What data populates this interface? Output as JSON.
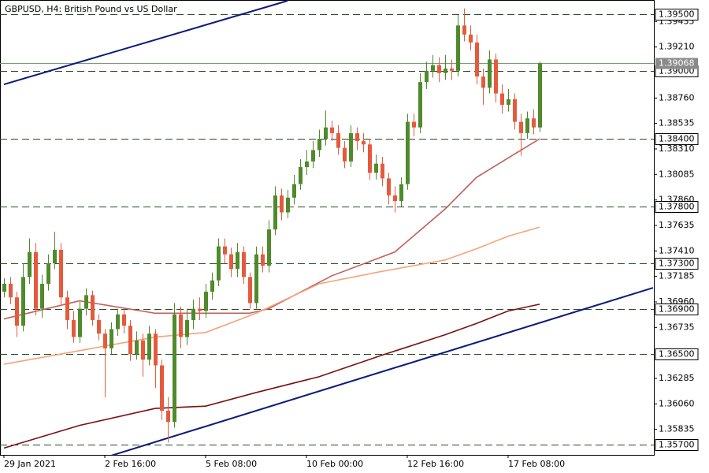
{
  "chart_data": {
    "type": "candlestick",
    "title": "GBPUSD, H4:  British Pound vs US Dollar",
    "categories": [
      "29 Jan 2021",
      null,
      null,
      null,
      null,
      null,
      null,
      null,
      null,
      null,
      null,
      null,
      null,
      null,
      null,
      null,
      "2 Feb 16:00",
      null,
      null,
      null,
      null,
      null,
      null,
      null,
      null,
      null,
      null,
      null,
      null,
      null,
      null,
      null,
      "5 Feb 08:00",
      null,
      null,
      null,
      null,
      null,
      null,
      null,
      null,
      null,
      null,
      null,
      null,
      null,
      null,
      null,
      "10 Feb 00:00",
      null,
      null,
      null,
      null,
      null,
      null,
      null,
      null,
      null,
      null,
      null,
      null,
      null,
      null,
      null,
      "12 Feb 16:00",
      null,
      null,
      null,
      null,
      null,
      null,
      null,
      null,
      null,
      null,
      null,
      null,
      null,
      null,
      null,
      "17 Feb 08:00",
      null,
      null,
      null,
      null,
      null
    ],
    "open": [
      1.3705,
      1.3712,
      1.37,
      1.3675,
      1.3718,
      1.374,
      1.369,
      1.3712,
      1.373,
      1.3742,
      1.37,
      1.368,
      1.3665,
      1.369,
      1.3702,
      1.368,
      1.3668,
      1.3655,
      1.3672,
      1.3685,
      1.3675,
      1.365,
      1.3662,
      1.3645,
      1.3668,
      1.364,
      1.36,
      1.359,
      1.3685,
      1.3665,
      1.368,
      1.369,
      1.3688,
      1.3705,
      1.3715,
      1.3745,
      1.3738,
      1.3725,
      1.374,
      1.3718,
      1.3695,
      1.3738,
      1.3728,
      1.376,
      1.379,
      1.3775,
      1.3788,
      1.38,
      1.3815,
      1.382,
      1.383,
      1.384,
      1.385,
      1.3845,
      1.3832,
      1.382,
      1.3845,
      1.3838,
      1.3835,
      1.381,
      1.3818,
      1.3805,
      1.379,
      1.3785,
      1.38,
      1.3855,
      1.385,
      1.389,
      1.39,
      1.3905,
      1.3898,
      1.3902,
      1.39,
      1.394,
      1.3932,
      1.3925,
      1.3895,
      1.3885,
      1.391,
      1.388,
      1.387,
      1.3875,
      1.3855,
      1.3845,
      1.3858,
      1.385
    ],
    "high": [
      1.3717,
      1.3718,
      1.3705,
      1.373,
      1.3752,
      1.3748,
      1.372,
      1.3738,
      1.3758,
      1.3748,
      1.3706,
      1.3688,
      1.3696,
      1.3708,
      1.3706,
      1.3685,
      1.3672,
      1.3678,
      1.369,
      1.369,
      1.368,
      1.367,
      1.3668,
      1.3675,
      1.3672,
      1.3645,
      1.3612,
      1.3695,
      1.3692,
      1.369,
      1.3698,
      1.37,
      1.3712,
      1.3722,
      1.3752,
      1.3752,
      1.3744,
      1.3748,
      1.3745,
      1.3722,
      1.3745,
      1.3745,
      1.3768,
      1.3798,
      1.3796,
      1.3795,
      1.3808,
      1.3822,
      1.383,
      1.3838,
      1.3848,
      1.3865,
      1.3856,
      1.3852,
      1.3838,
      1.3852,
      1.385,
      1.3845,
      1.384,
      1.3826,
      1.3824,
      1.381,
      1.3798,
      1.3806,
      1.3862,
      1.3862,
      1.3898,
      1.3908,
      1.3914,
      1.3912,
      1.3914,
      1.391,
      1.395,
      1.3955,
      1.394,
      1.3932,
      1.3902,
      1.3918,
      1.3915,
      1.3888,
      1.3884,
      1.388,
      1.3862,
      1.3864,
      1.3866,
      1.3908
    ],
    "low": [
      1.37,
      1.3694,
      1.3665,
      1.367,
      1.3712,
      1.3684,
      1.3682,
      1.3706,
      1.3725,
      1.3694,
      1.3672,
      1.366,
      1.366,
      1.3684,
      1.3675,
      1.3662,
      1.3612,
      1.365,
      1.3666,
      1.3668,
      1.3644,
      1.3645,
      1.363,
      1.364,
      1.362,
      1.3592,
      1.3572,
      1.3585,
      1.3655,
      1.3658,
      1.3672,
      1.368,
      1.3682,
      1.3698,
      1.371,
      1.373,
      1.3718,
      1.3718,
      1.3712,
      1.369,
      1.369,
      1.3722,
      1.3722,
      1.3755,
      1.3768,
      1.377,
      1.3782,
      1.3795,
      1.3808,
      1.3814,
      1.3824,
      1.3834,
      1.3838,
      1.3826,
      1.3814,
      1.3815,
      1.383,
      1.3828,
      1.3804,
      1.3804,
      1.3798,
      1.3782,
      1.3775,
      1.378,
      1.3795,
      1.3842,
      1.3845,
      1.3884,
      1.3894,
      1.389,
      1.3892,
      1.3892,
      1.3895,
      1.3926,
      1.3918,
      1.3888,
      1.387,
      1.388,
      1.3872,
      1.3862,
      1.3864,
      1.3848,
      1.3825,
      1.384,
      1.3844,
      1.3846
    ],
    "close": [
      1.3712,
      1.37,
      1.3675,
      1.3718,
      1.374,
      1.369,
      1.3712,
      1.373,
      1.3742,
      1.37,
      1.368,
      1.3665,
      1.369,
      1.3702,
      1.368,
      1.3668,
      1.3655,
      1.3672,
      1.3685,
      1.3675,
      1.365,
      1.3662,
      1.3645,
      1.3668,
      1.364,
      1.36,
      1.359,
      1.3685,
      1.3665,
      1.368,
      1.369,
      1.3688,
      1.3705,
      1.3715,
      1.3745,
      1.3738,
      1.3725,
      1.374,
      1.3718,
      1.3695,
      1.3738,
      1.3728,
      1.376,
      1.379,
      1.3775,
      1.3788,
      1.38,
      1.3815,
      1.382,
      1.383,
      1.384,
      1.385,
      1.3845,
      1.3832,
      1.382,
      1.3845,
      1.3838,
      1.3835,
      1.381,
      1.3818,
      1.3805,
      1.379,
      1.3785,
      1.38,
      1.3855,
      1.385,
      1.389,
      1.39,
      1.3905,
      1.3898,
      1.3902,
      1.39,
      1.394,
      1.3932,
      1.3925,
      1.3895,
      1.3885,
      1.391,
      1.388,
      1.387,
      1.3875,
      1.3855,
      1.3845,
      1.3858,
      1.385,
      1.39068
    ],
    "up_color": "#4f8a2b",
    "down_color": "#e55a3c",
    "ylim": [
      1.3561,
      1.39625
    ],
    "yticks": [
      1.39435,
      {
        "value": 1.3921,
        "label": "1.39210"
      },
      {
        "value": 1.3876,
        "label": "1.38760"
      },
      1.38535,
      {
        "value": 1.3831,
        "label": "1.38310"
      },
      1.38085,
      {
        "value": 1.3786,
        "label": "1.37860"
      },
      1.37635,
      {
        "value": 1.3741,
        "label": "1.37410"
      },
      1.37185,
      {
        "value": 1.3696,
        "label": "1.36960"
      },
      1.36735,
      1.36285,
      {
        "value": 1.3606,
        "label": "1.36060"
      },
      1.35835
    ],
    "levels": [
      {
        "value": 1.395,
        "label": "1.39500"
      },
      {
        "value": 1.39,
        "label": "1.39000"
      },
      {
        "value": 1.384,
        "label": "1.38400"
      },
      {
        "value": 1.378,
        "label": "1.37800"
      },
      {
        "value": 1.373,
        "label": "1.37300"
      },
      {
        "value": 1.369,
        "label": "1.36900"
      },
      {
        "value": 1.365,
        "label": "1.36500"
      },
      {
        "value": 1.357,
        "label": "1.35700"
      }
    ],
    "current": {
      "value": 1.39068,
      "label": "1.39068"
    },
    "overlays": [
      {
        "color": "#c0605c",
        "x": [
          0,
          12,
          24,
          39,
          42,
          52,
          62,
          70,
          75,
          80,
          85
        ],
        "values": [
          1.3681,
          1.3697,
          1.3686,
          1.3686,
          1.369,
          1.3719,
          1.374,
          1.3778,
          1.3806,
          1.3823,
          1.384
        ]
      },
      {
        "color": "#f4a47a",
        "x": [
          0,
          12,
          24,
          32,
          40,
          50,
          60,
          70,
          75,
          80,
          85
        ],
        "values": [
          1.3641,
          1.3653,
          1.3665,
          1.3669,
          1.3686,
          1.3712,
          1.3723,
          1.3733,
          1.3743,
          1.3754,
          1.3762
        ]
      },
      {
        "color": "#7a1010",
        "x": [
          0,
          12,
          24,
          32,
          40,
          50,
          60,
          70,
          75,
          80,
          85
        ],
        "values": [
          1.3567,
          1.3587,
          1.3602,
          1.3604,
          1.3616,
          1.363,
          1.3649,
          1.3667,
          1.3677,
          1.3688,
          1.3694
        ]
      },
      {
        "color": "#0b1a7a",
        "x": [
          0,
          45
        ],
        "values": [
          1.3888,
          1.39618
        ]
      },
      {
        "color": "#0b1a7a",
        "x": [
          17,
          103
        ],
        "values": [
          1.35603,
          1.37085
        ]
      }
    ]
  }
}
